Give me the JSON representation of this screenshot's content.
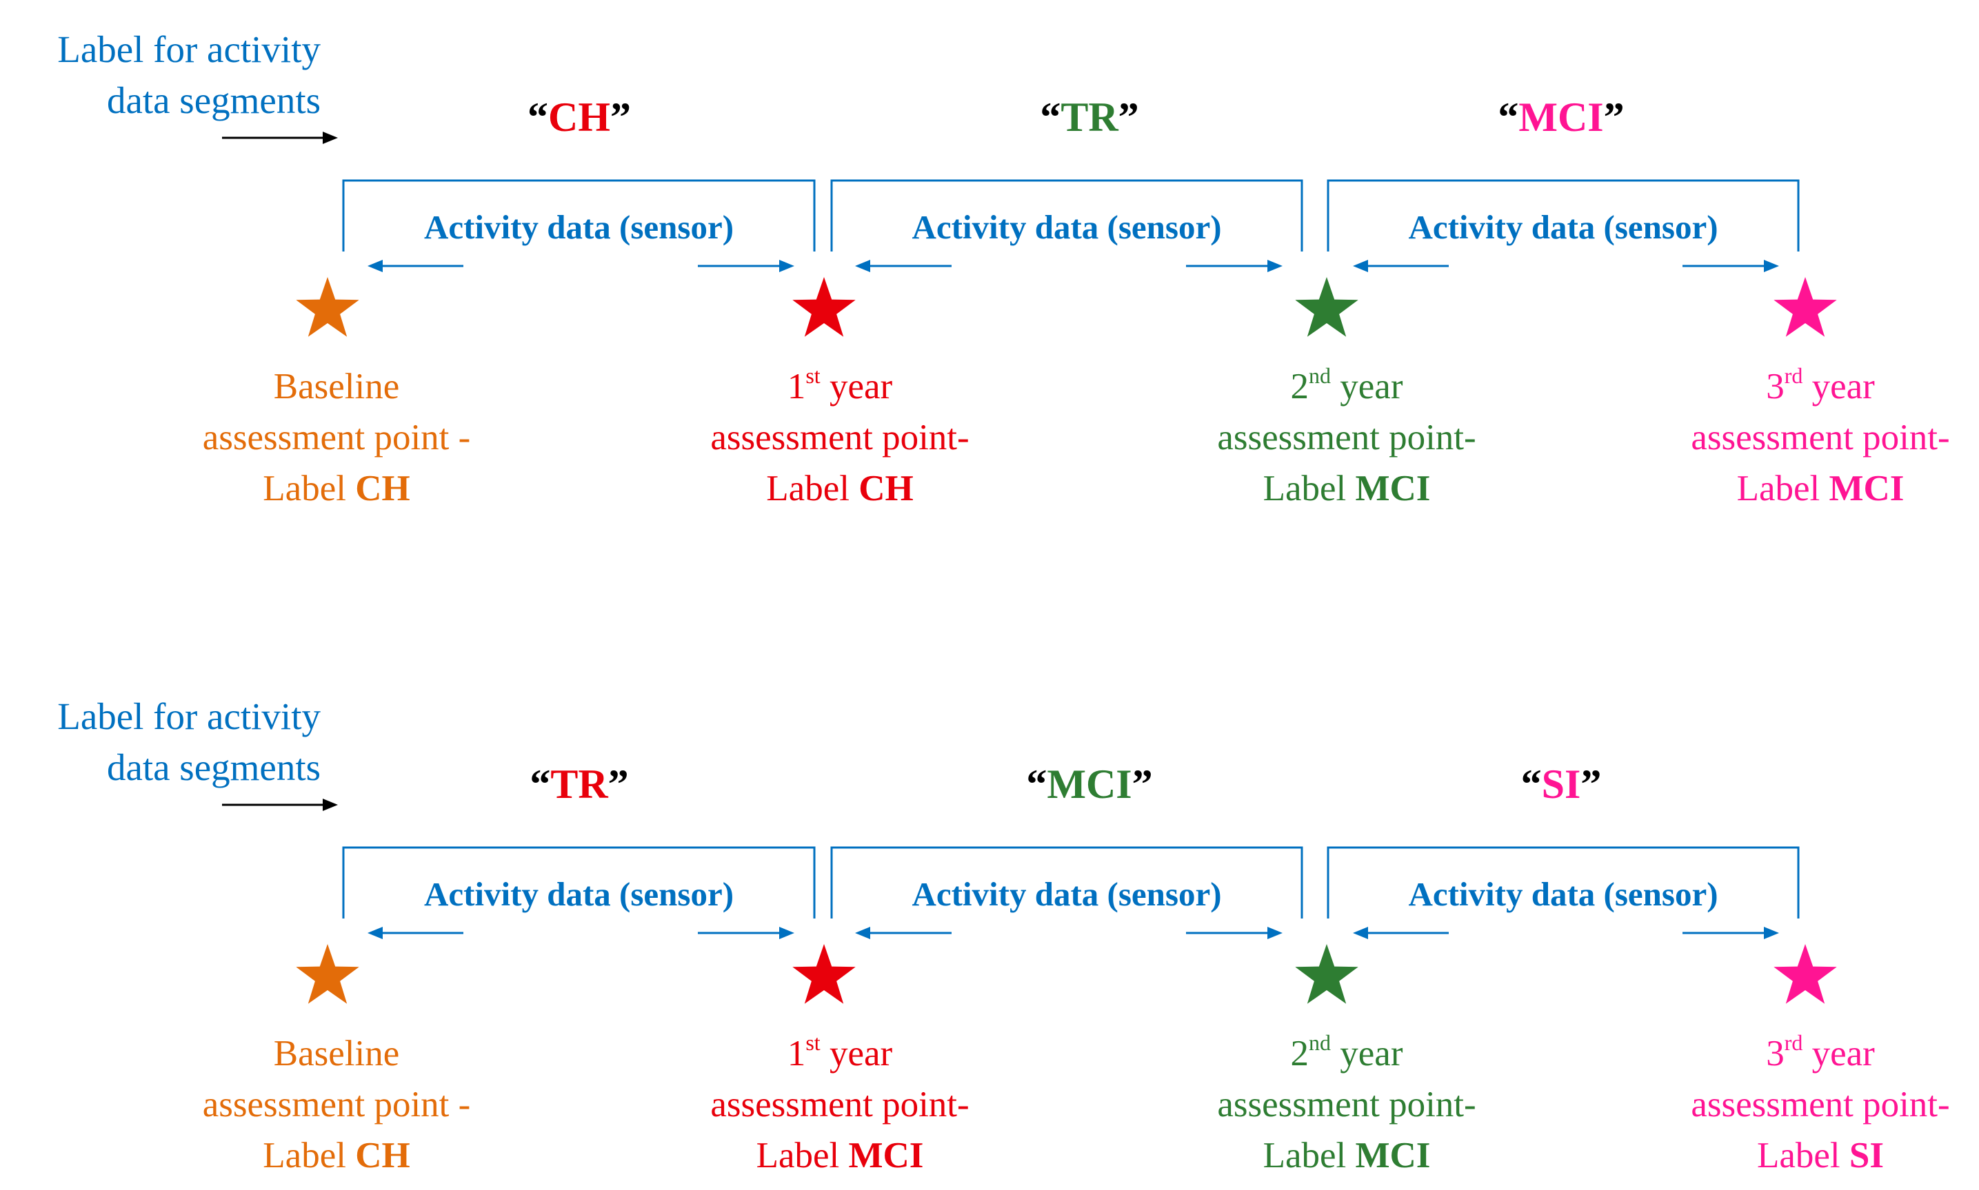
{
  "colors": {
    "blue": "#0070C0",
    "orange": "#E36C09",
    "red": "#E8000B",
    "green": "#2E7D32",
    "magenta": "#FF1493",
    "arrow_black": "#000000"
  },
  "panels": [
    {
      "intro_label": {
        "line1": "Label for activity",
        "line2": "data segments"
      },
      "segments": [
        {
          "label": "CH",
          "open_quote": "“",
          "close_quote": "”",
          "color": "#E8000B",
          "activity": "Activity data (sensor)"
        },
        {
          "label": "TR",
          "open_quote": "“",
          "close_quote": "”",
          "color": "#2E7D32",
          "activity": "Activity data (sensor)"
        },
        {
          "label": "MCI",
          "open_quote": "“",
          "close_quote": "”",
          "color": "#FF1493",
          "activity": "Activity data (sensor)"
        }
      ],
      "points": [
        {
          "icon": "star-icon",
          "color": "#E36C09",
          "ordinal": "",
          "ordinal_sup": "",
          "line1_text": "Baseline",
          "line2": "assessment point -",
          "label_prefix": "Label ",
          "label_value": "CH"
        },
        {
          "icon": "star-icon",
          "color": "#E8000B",
          "ordinal": "1",
          "ordinal_sup": "st",
          "line1_text": " year",
          "line2": "assessment point-",
          "label_prefix": "Label ",
          "label_value": "CH"
        },
        {
          "icon": "star-icon",
          "color": "#2E7D32",
          "ordinal": "2",
          "ordinal_sup": "nd",
          "line1_text": " year",
          "line2": "assessment point-",
          "label_prefix": "Label ",
          "label_value": "MCI"
        },
        {
          "icon": "star-icon",
          "color": "#FF1493",
          "ordinal": "3",
          "ordinal_sup": "rd",
          "line1_text": " year",
          "line2": "assessment point-",
          "label_prefix": "Label ",
          "label_value": "MCI"
        }
      ]
    },
    {
      "intro_label": {
        "line1": "Label for activity",
        "line2": "data segments"
      },
      "segments": [
        {
          "label": "TR",
          "open_quote": "“",
          "close_quote": "”",
          "color": "#E8000B",
          "activity": "Activity data (sensor)"
        },
        {
          "label": "MCI",
          "open_quote": "“",
          "close_quote": "”",
          "color": "#2E7D32",
          "activity": "Activity data (sensor)"
        },
        {
          "label": "SI",
          "open_quote": "“",
          "close_quote": "”",
          "color": "#FF1493",
          "activity": "Activity data (sensor)"
        }
      ],
      "points": [
        {
          "icon": "star-icon",
          "color": "#E36C09",
          "ordinal": "",
          "ordinal_sup": "",
          "line1_text": "Baseline",
          "line2": "assessment point -",
          "label_prefix": "Label ",
          "label_value": "CH"
        },
        {
          "icon": "star-icon",
          "color": "#E8000B",
          "ordinal": "1",
          "ordinal_sup": "st",
          "line1_text": " year",
          "line2": "assessment point-",
          "label_prefix": "Label ",
          "label_value": "MCI"
        },
        {
          "icon": "star-icon",
          "color": "#2E7D32",
          "ordinal": "2",
          "ordinal_sup": "nd",
          "line1_text": " year",
          "line2": "assessment point-",
          "label_prefix": "Label ",
          "label_value": "MCI"
        },
        {
          "icon": "star-icon",
          "color": "#FF1493",
          "ordinal": "3",
          "ordinal_sup": "rd",
          "line1_text": " year",
          "line2": "assessment point-",
          "label_prefix": "Label ",
          "label_value": "SI"
        }
      ]
    }
  ]
}
